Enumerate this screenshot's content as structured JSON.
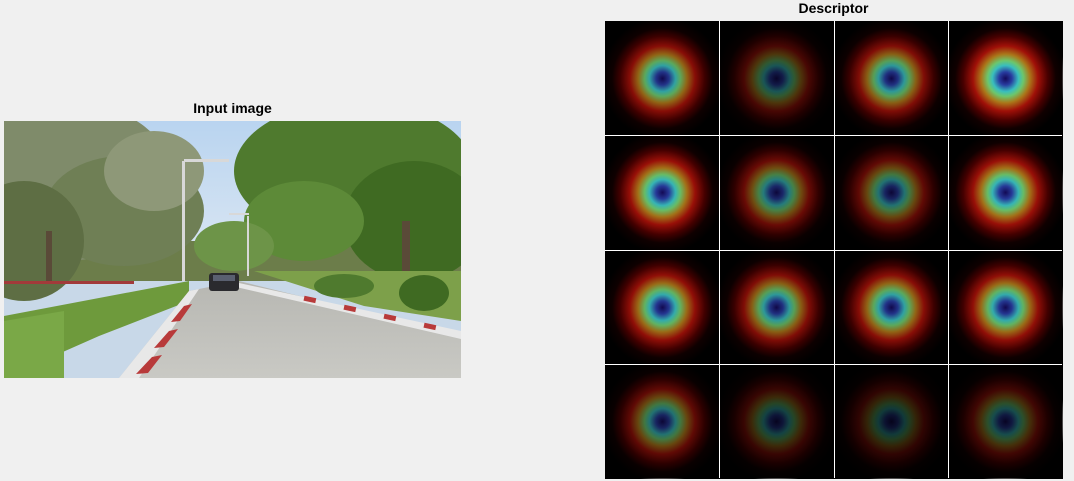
{
  "figure": {
    "input_title": "Input image",
    "descriptor_title": "Descriptor"
  },
  "descriptor": {
    "rows": 4,
    "cols": 4,
    "cell_intensity": [
      [
        0.85,
        0.45,
        0.8,
        1.0
      ],
      [
        0.95,
        0.65,
        0.6,
        0.95
      ],
      [
        0.9,
        0.8,
        0.85,
        0.9
      ],
      [
        0.6,
        0.35,
        0.3,
        0.4
      ]
    ],
    "colormap": "jet-dark"
  }
}
